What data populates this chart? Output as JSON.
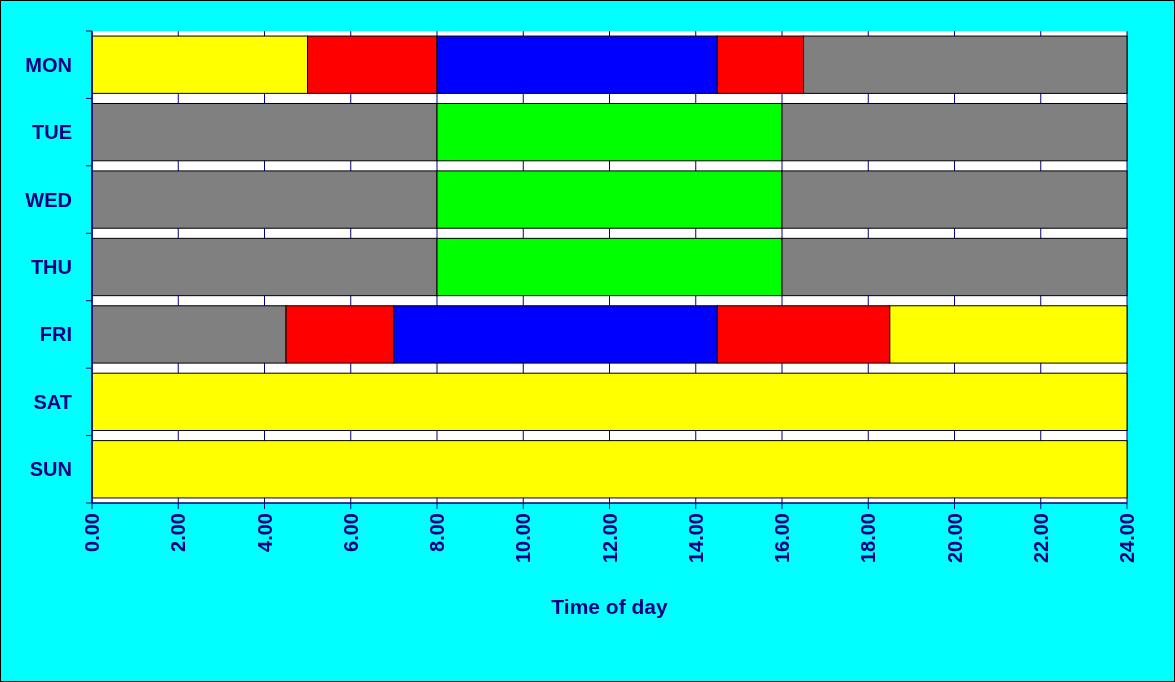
{
  "chart_data": {
    "type": "bar",
    "orientation": "horizontal",
    "stacked": true,
    "xlabel": "Time of day",
    "categories": [
      "MON",
      "TUE",
      "WED",
      "THU",
      "FRI",
      "SAT",
      "SUN"
    ],
    "series": [
      {
        "values": [
          5,
          8,
          8,
          8,
          4.5,
          24,
          24
        ],
        "colors": [
          "#ffff00",
          "#808080",
          "#808080",
          "#808080",
          "#808080",
          "#ffff00",
          "#ffff00"
        ]
      },
      {
        "values": [
          3,
          8,
          8,
          8,
          2.5,
          null,
          null
        ],
        "colors": [
          "#ff0000",
          "#00ff00",
          "#00ff00",
          "#00ff00",
          "#ff0000",
          null,
          null
        ]
      },
      {
        "values": [
          6.5,
          8,
          8,
          8,
          7.5,
          null,
          null
        ],
        "colors": [
          "#0000ff",
          "#808080",
          "#808080",
          "#808080",
          "#0000ff",
          null,
          null
        ]
      },
      {
        "values": [
          2,
          null,
          null,
          null,
          4,
          null,
          null
        ],
        "colors": [
          "#ff0000",
          null,
          null,
          null,
          "#ff0000",
          null,
          null
        ]
      },
      {
        "values": [
          7.5,
          null,
          null,
          null,
          5.5,
          null,
          null
        ],
        "colors": [
          "#808080",
          null,
          null,
          null,
          "#ffff00",
          null,
          null
        ]
      }
    ],
    "xlim": [
      0,
      24
    ],
    "xticks": [
      {
        "value": 0,
        "label": "0.00"
      },
      {
        "value": 2,
        "label": "2.00"
      },
      {
        "value": 4,
        "label": "4.00"
      },
      {
        "value": 6,
        "label": "6.00"
      },
      {
        "value": 8,
        "label": "8.00"
      },
      {
        "value": 10,
        "label": "10.00"
      },
      {
        "value": 12,
        "label": "12.00"
      },
      {
        "value": 14,
        "label": "14.00"
      },
      {
        "value": 16,
        "label": "16.00"
      },
      {
        "value": 18,
        "label": "18.00"
      },
      {
        "value": 20,
        "label": "20.00"
      },
      {
        "value": 22,
        "label": "22.00"
      },
      {
        "value": 24,
        "label": "24.00"
      }
    ],
    "grid": "x"
  }
}
